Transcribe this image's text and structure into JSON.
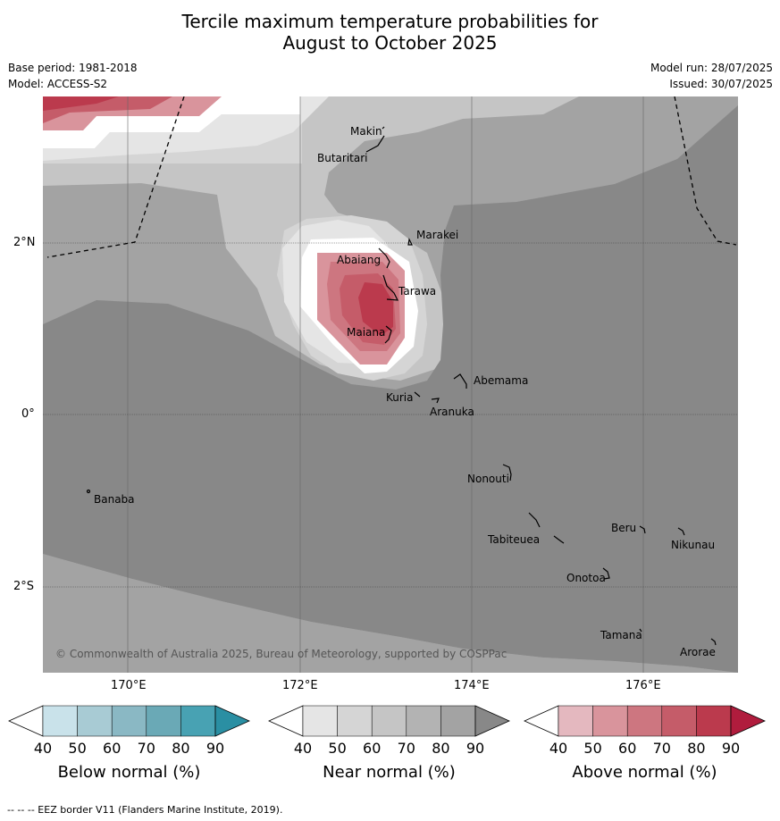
{
  "title_line1": "Tercile maximum temperature probabilities for",
  "title_line2": "August to October 2025",
  "base_period": "Base period: 1981-2018",
  "model": "Model: ACCESS-S2",
  "model_run": "Model run: 28/07/2025",
  "issued": "Issued: 30/07/2025",
  "copyright": "© Commonwealth of Australia 2025, Bureau of Meteorology, supported by COSPPac",
  "lat_labels": [
    "2°N",
    "0°",
    "2°S"
  ],
  "lon_labels": [
    "170°E",
    "172°E",
    "174°E",
    "176°E"
  ],
  "islands": [
    "Makin",
    "Butaritari",
    "Marakei",
    "Abaiang",
    "Tarawa",
    "Maiana",
    "Abemama",
    "Kuria",
    "Aranuka",
    "Nonouti",
    "Banaba",
    "Beru",
    "Nikunau",
    "Tabiteuea",
    "Onotoa",
    "Tamana",
    "Arorae"
  ],
  "colorbars": [
    {
      "title": "Below normal (%)",
      "ticks": [
        "40",
        "50",
        "60",
        "70",
        "80",
        "90"
      ],
      "colors": [
        "#ffffff",
        "#c9e2ea",
        "#a8cbd4",
        "#8ab8c4",
        "#6aa9b6",
        "#48a2b3",
        "#2a8fa3"
      ]
    },
    {
      "title": "Near normal (%)",
      "ticks": [
        "40",
        "50",
        "60",
        "70",
        "80",
        "90"
      ],
      "colors": [
        "#ffffff",
        "#e5e5e5",
        "#d5d5d5",
        "#c5c5c5",
        "#b3b3b3",
        "#a3a3a3",
        "#888888"
      ]
    },
    {
      "title": "Above normal (%)",
      "ticks": [
        "40",
        "50",
        "60",
        "70",
        "80",
        "90"
      ],
      "colors": [
        "#ffffff",
        "#e4b8bf",
        "#d9949c",
        "#cd7680",
        "#c55c69",
        "#bb3a4d",
        "#b01c3d"
      ]
    }
  ],
  "footnote": "--  --  -- EEZ border V11 (Flanders Marine Institute, 2019)."
}
